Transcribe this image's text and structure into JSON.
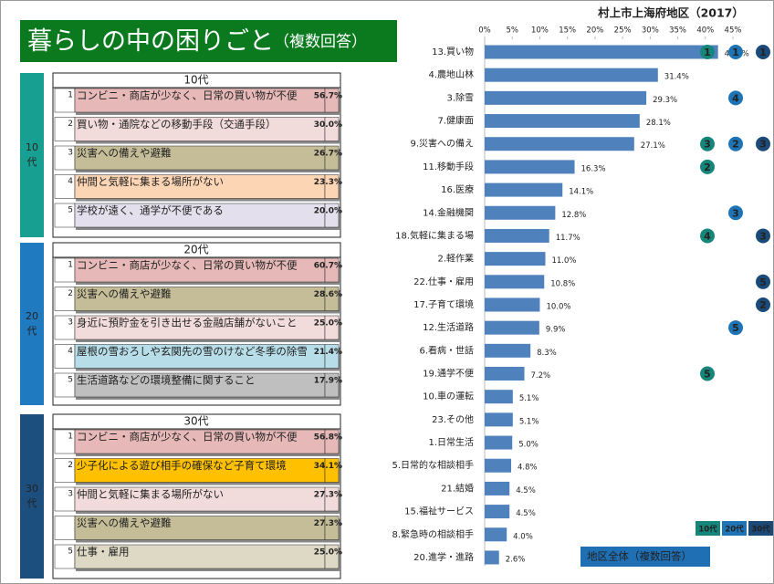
{
  "header": {
    "title": "暮らしの中の困りごと",
    "subtitle": "（複数回答）",
    "color": "#0b7a1f"
  },
  "tables": [
    {
      "group": "10代",
      "side_label": [
        "10",
        "代"
      ],
      "color": "#17a091",
      "rows": [
        {
          "rank": "1",
          "text": "コンビニ・商店が少なく、日常の買い物が不便",
          "pct": "56.7%",
          "color": "#e6b9b8"
        },
        {
          "rank": "2",
          "text": "買い物・通院などの移動手段（交通手段）",
          "pct": "30.0%",
          "color": "#f2dcdb"
        },
        {
          "rank": "3",
          "text": "災害への備えや避難",
          "pct": "26.7%",
          "color": "#c4bd97"
        },
        {
          "rank": "4",
          "text": "仲間と気軽に集まる場所がない",
          "pct": "23.3%",
          "color": "#fcd5b4"
        },
        {
          "rank": "5",
          "text": "学校が遠く、通学が不便である",
          "pct": "20.0%",
          "color": "#e4dfec"
        }
      ]
    },
    {
      "group": "20代",
      "side_label": [
        "20",
        "代"
      ],
      "color": "#1f7ac0",
      "rows": [
        {
          "rank": "1",
          "text": "コンビニ・商店が少なく、日常の買い物が不便",
          "pct": "60.7%",
          "color": "#e6b9b8"
        },
        {
          "rank": "2",
          "text": "災害への備えや避難",
          "pct": "28.6%",
          "color": "#c4bd97"
        },
        {
          "rank": "3",
          "text": "身近に預貯金を引き出せる金融店舗がないこと",
          "pct": "25.0%",
          "color": "#f2dcdb"
        },
        {
          "rank": "4",
          "text": "屋根の雪おろしや玄関先の雪のけなど冬季の除雪",
          "pct": "21.4%",
          "color": "#b7dee8"
        },
        {
          "rank": "5",
          "text": "生活道路などの環境整備に関すること",
          "pct": "17.9%",
          "color": "#bfbfbf"
        }
      ]
    },
    {
      "group": "30代",
      "side_label": [
        "30",
        "代"
      ],
      "color": "#1c4f7e",
      "rows": [
        {
          "rank": "1",
          "text": "コンビニ・商店が少なく、日常の買い物が不便",
          "pct": "56.8%",
          "color": "#e6b9b8"
        },
        {
          "rank": "2",
          "text": "少子化による遊び相手の確保など子育て環境",
          "pct": "34.1%",
          "color": "#ffc000"
        },
        {
          "rank": "3",
          "text": "仲間と気軽に集まる場所がない",
          "pct": "27.3%",
          "color": "#f2dcdb"
        },
        {
          "text": "災害への備えや避難",
          "pct": "27.3%",
          "color": "#c4bd97"
        },
        {
          "rank": "5",
          "text": "仕事・雇用",
          "pct": "25.0%",
          "color": "#ddd9c4"
        }
      ]
    }
  ],
  "chart_data": {
    "type": "bar",
    "orientation": "horizontal",
    "title": "村上市上海府地区（2017）",
    "categories": [
      "13.買い物",
      "4.農地山林",
      "3.除雪",
      "7.健康面",
      "9.災害への備え",
      "11.移動手段",
      "16.医療",
      "14.金融機関",
      "18.気軽に集まる場",
      "2.軽作業",
      "22.仕事・雇用",
      "17.子育て環境",
      "12.生活道路",
      "6.看病・世話",
      "19.通学不便",
      "10.車の運転",
      "23.その他",
      "1.日常生活",
      "5.日常的な相談相手",
      "21.結婚",
      "15.福祉サービス",
      "8.緊急時の相談相手",
      "20.進学・進路"
    ],
    "values": [
      42.3,
      31.4,
      29.3,
      28.1,
      27.1,
      16.3,
      14.1,
      12.8,
      11.7,
      11.0,
      10.8,
      10.0,
      9.9,
      8.3,
      7.2,
      5.1,
      5.1,
      5.0,
      4.8,
      4.5,
      4.5,
      4.0,
      2.6
    ],
    "value_labels": [
      "42.3%",
      "31.4%",
      "29.3%",
      "28.1%",
      "27.1%",
      "16.3%",
      "14.1%",
      "12.8%",
      "11.7%",
      "11.0%",
      "10.8%",
      "10.0%",
      "9.9%",
      "8.3%",
      "7.2%",
      "5.1%",
      "5.1%",
      "5.0%",
      "4.8%",
      "4.5%",
      "4.5%",
      "4.0%",
      "2.6%"
    ],
    "color": "#4f81bd",
    "xlim": [
      0,
      45
    ],
    "xticks": [
      {
        "value": 0,
        "label": "0%"
      },
      {
        "value": 5,
        "label": "5%"
      },
      {
        "value": 10,
        "label": "10%"
      },
      {
        "value": 15,
        "label": "15%"
      },
      {
        "value": 20,
        "label": "20%"
      },
      {
        "value": 25,
        "label": "25%"
      },
      {
        "value": 30,
        "label": "30%"
      },
      {
        "value": 35,
        "label": "35%"
      },
      {
        "value": 40,
        "label": "40%"
      },
      {
        "value": 45,
        "label": "45%"
      }
    ],
    "grid": false,
    "legend_label": "地区全体（複数回答）",
    "legend_color": "#1f6fb5",
    "groups": [
      {
        "name": "10代",
        "color": "#17867a"
      },
      {
        "name": "20代",
        "color": "#1f74b5"
      },
      {
        "name": "30代",
        "color": "#1c4a78"
      }
    ],
    "rank_markers": [
      {
        "row": 0,
        "group": 0,
        "rank": 1
      },
      {
        "row": 0,
        "group": 1,
        "rank": 1
      },
      {
        "row": 0,
        "group": 2,
        "rank": 1
      },
      {
        "row": 2,
        "group": 1,
        "rank": 4
      },
      {
        "row": 4,
        "group": 0,
        "rank": 3
      },
      {
        "row": 4,
        "group": 1,
        "rank": 2
      },
      {
        "row": 4,
        "group": 2,
        "rank": 3
      },
      {
        "row": 5,
        "group": 0,
        "rank": 2
      },
      {
        "row": 7,
        "group": 1,
        "rank": 3
      },
      {
        "row": 8,
        "group": 0,
        "rank": 4
      },
      {
        "row": 8,
        "group": 2,
        "rank": 3
      },
      {
        "row": 10,
        "group": 2,
        "rank": 5
      },
      {
        "row": 11,
        "group": 2,
        "rank": 2
      },
      {
        "row": 12,
        "group": 1,
        "rank": 5
      },
      {
        "row": 14,
        "group": 0,
        "rank": 5
      }
    ]
  }
}
